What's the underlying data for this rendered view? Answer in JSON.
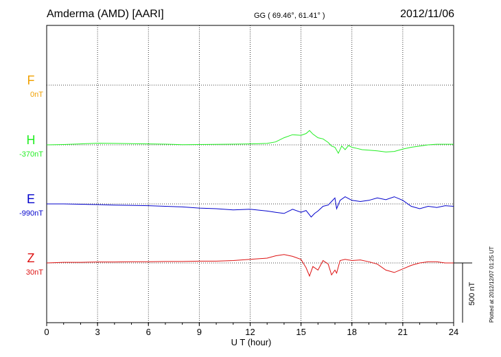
{
  "header": {
    "station": "Amderma (AMD)  [AARI]",
    "coordinates": "GG ( 69.46°,  61.41° )",
    "date": "2012/11/06"
  },
  "footer": {
    "plotted_note": "Plotted at 2012/12/07 01:25 UT"
  },
  "chart_data": {
    "type": "line",
    "xlabel": "U T (hour)",
    "xlim": [
      0,
      24
    ],
    "xticks": [
      0,
      3,
      6,
      9,
      12,
      15,
      18,
      21,
      24
    ],
    "grid": true,
    "scale_bar_label": "500 nT",
    "scale_bar_nT": 500,
    "series": [
      {
        "name": "F",
        "offset_label": "0nT",
        "color": "#f0a000",
        "baseline_nT": 0,
        "x": [],
        "y": []
      },
      {
        "name": "H",
        "offset_label": "-370nT",
        "color": "#22ee22",
        "baseline_nT": -370,
        "x": [
          0,
          1,
          2,
          3,
          4,
          5,
          6,
          7,
          8,
          9,
          10,
          11,
          12,
          13,
          13.5,
          14,
          14.5,
          15,
          15.3,
          15.5,
          15.7,
          16,
          16.3,
          16.6,
          16.8,
          17,
          17.2,
          17.4,
          17.6,
          17.8,
          18,
          18.3,
          18.6,
          19,
          19.5,
          20,
          20.5,
          21,
          21.5,
          22,
          22.5,
          23,
          24
        ],
        "y": [
          0,
          3,
          8,
          14,
          12,
          10,
          8,
          6,
          2,
          3,
          4,
          6,
          8,
          12,
          25,
          60,
          85,
          80,
          95,
          120,
          90,
          60,
          50,
          20,
          -10,
          -20,
          -70,
          -10,
          -40,
          -5,
          -20,
          -30,
          -40,
          -45,
          -50,
          -60,
          -55,
          -35,
          -20,
          -10,
          0,
          5,
          5
        ]
      },
      {
        "name": "E",
        "offset_label": "-990nT",
        "color": "#0000cc",
        "baseline_nT": -990,
        "x": [
          0,
          1,
          2,
          3,
          4,
          5,
          6,
          7,
          8,
          9,
          10,
          11,
          12,
          13,
          13.5,
          14,
          14.5,
          15,
          15.3,
          15.6,
          15.8,
          16,
          16.3,
          16.6,
          16.8,
          17,
          17.1,
          17.3,
          17.6,
          18,
          18.5,
          19,
          19.5,
          20,
          20.5,
          21,
          21.5,
          22,
          22.5,
          23,
          23.5,
          24
        ],
        "y": [
          0,
          0,
          -3,
          -6,
          -10,
          -12,
          -15,
          -20,
          -25,
          -35,
          -40,
          -50,
          -45,
          -60,
          -70,
          -80,
          -45,
          -70,
          -55,
          -110,
          -80,
          -60,
          -20,
          -10,
          20,
          50,
          -40,
          30,
          60,
          30,
          20,
          30,
          50,
          35,
          60,
          30,
          -20,
          -40,
          -20,
          -30,
          -15,
          -20
        ]
      },
      {
        "name": "Z",
        "offset_label": "30nT",
        "color": "#dd1111",
        "baseline_nT": 30,
        "x": [
          0,
          1,
          2,
          3,
          4,
          5,
          6,
          7,
          8,
          9,
          10,
          11,
          12,
          13,
          13.5,
          14,
          14.5,
          15,
          15.3,
          15.5,
          15.7,
          16,
          16.3,
          16.6,
          16.8,
          17,
          17.1,
          17.3,
          17.6,
          18,
          18.5,
          19,
          19.5,
          20,
          20.5,
          21,
          21.5,
          22,
          22.5,
          23,
          23.5,
          24
        ],
        "y": [
          0,
          5,
          5,
          8,
          8,
          10,
          10,
          12,
          12,
          15,
          15,
          20,
          30,
          40,
          60,
          70,
          55,
          30,
          -40,
          -110,
          -30,
          -60,
          20,
          -10,
          -100,
          -60,
          -85,
          20,
          30,
          20,
          25,
          10,
          -10,
          -60,
          -80,
          -50,
          -20,
          0,
          10,
          10,
          0,
          0
        ]
      }
    ]
  }
}
